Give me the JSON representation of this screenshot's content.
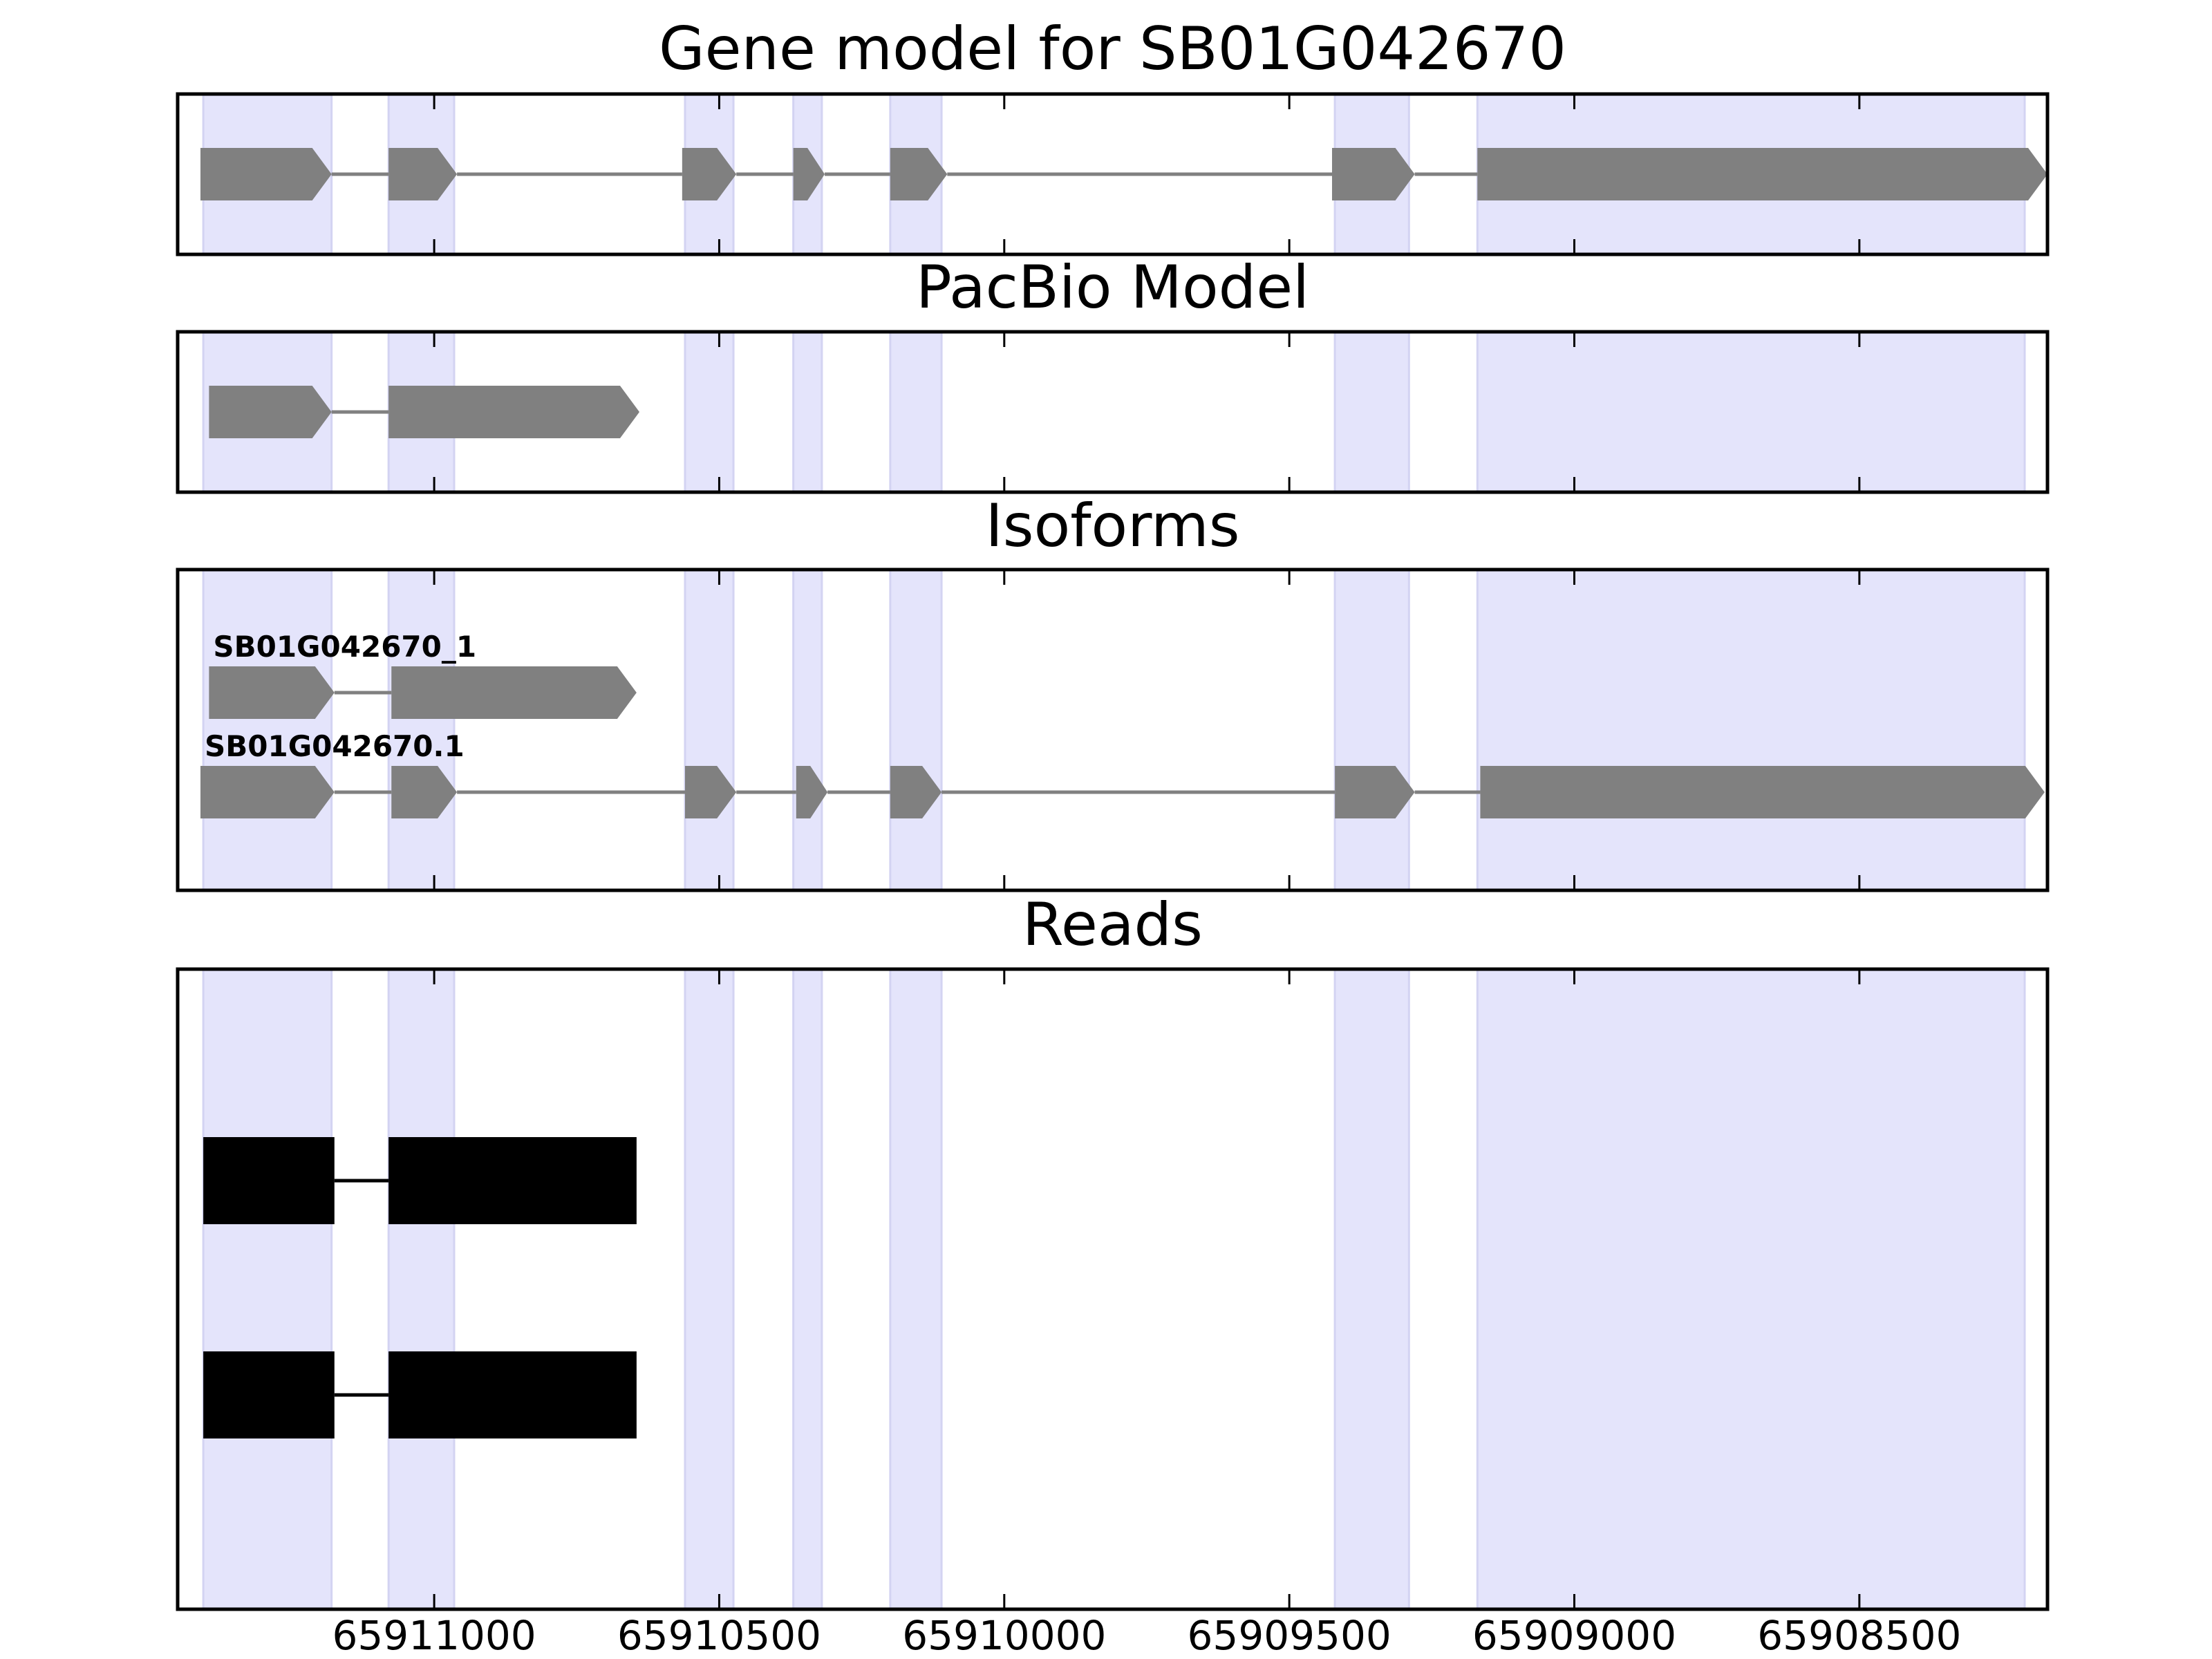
{
  "chart_data": {
    "type": "gene-model",
    "x_axis": {
      "reversed": true,
      "xlim": [
        65911450,
        65908170
      ],
      "ticks": [
        65911000,
        65910500,
        65910000,
        65909500,
        65909000,
        65908500
      ],
      "tick_labels": [
        "65911000",
        "65910500",
        "65910000",
        "65909500",
        "65909000",
        "65908500"
      ]
    },
    "shade_color": "#e4e4fb",
    "feature_color": "#808080",
    "read_color": "#000000",
    "highlight_exons": [
      [
        65911405,
        65911180
      ],
      [
        65911080,
        65910965
      ],
      [
        65910560,
        65910475
      ],
      [
        65910370,
        65910320
      ],
      [
        65910200,
        65910110
      ],
      [
        65909420,
        65909290
      ],
      [
        65909170,
        65908210
      ]
    ],
    "panels": [
      {
        "title": "Gene model for SB01G042670",
        "kind": "gene",
        "tracks": [
          {
            "label": "",
            "strand": "-",
            "exons": [
              [
                65911410,
                65911180
              ],
              [
                65911080,
                65910960
              ],
              [
                65910565,
                65910470
              ],
              [
                65910370,
                65910315
              ],
              [
                65910200,
                65910100
              ],
              [
                65909425,
                65909280
              ],
              [
                65909170,
                65908170
              ]
            ]
          }
        ]
      },
      {
        "title": "PacBio Model",
        "kind": "gene",
        "tracks": [
          {
            "label": "",
            "strand": "-",
            "exons": [
              [
                65911395,
                65911180
              ],
              [
                65911080,
                65910640
              ]
            ]
          }
        ]
      },
      {
        "title": "Isoforms",
        "kind": "gene",
        "tracks": [
          {
            "label": "SB01G042670_1",
            "strand": "-",
            "exons": [
              [
                65911395,
                65911175
              ],
              [
                65911075,
                65910645
              ]
            ]
          },
          {
            "label": "SB01G042670.1",
            "strand": "-",
            "exons": [
              [
                65911410,
                65911175
              ],
              [
                65911075,
                65910960
              ],
              [
                65910560,
                65910470
              ],
              [
                65910365,
                65910310
              ],
              [
                65910200,
                65910110
              ],
              [
                65909420,
                65909280
              ],
              [
                65909165,
                65908175
              ]
            ]
          }
        ]
      },
      {
        "title": "Reads",
        "kind": "reads",
        "tracks": [
          {
            "label": "",
            "exons": [
              [
                65911405,
                65911175
              ],
              [
                65911080,
                65910645
              ]
            ]
          },
          {
            "label": "",
            "exons": [
              [
                65911405,
                65911175
              ],
              [
                65911080,
                65910645
              ]
            ]
          }
        ]
      }
    ]
  }
}
